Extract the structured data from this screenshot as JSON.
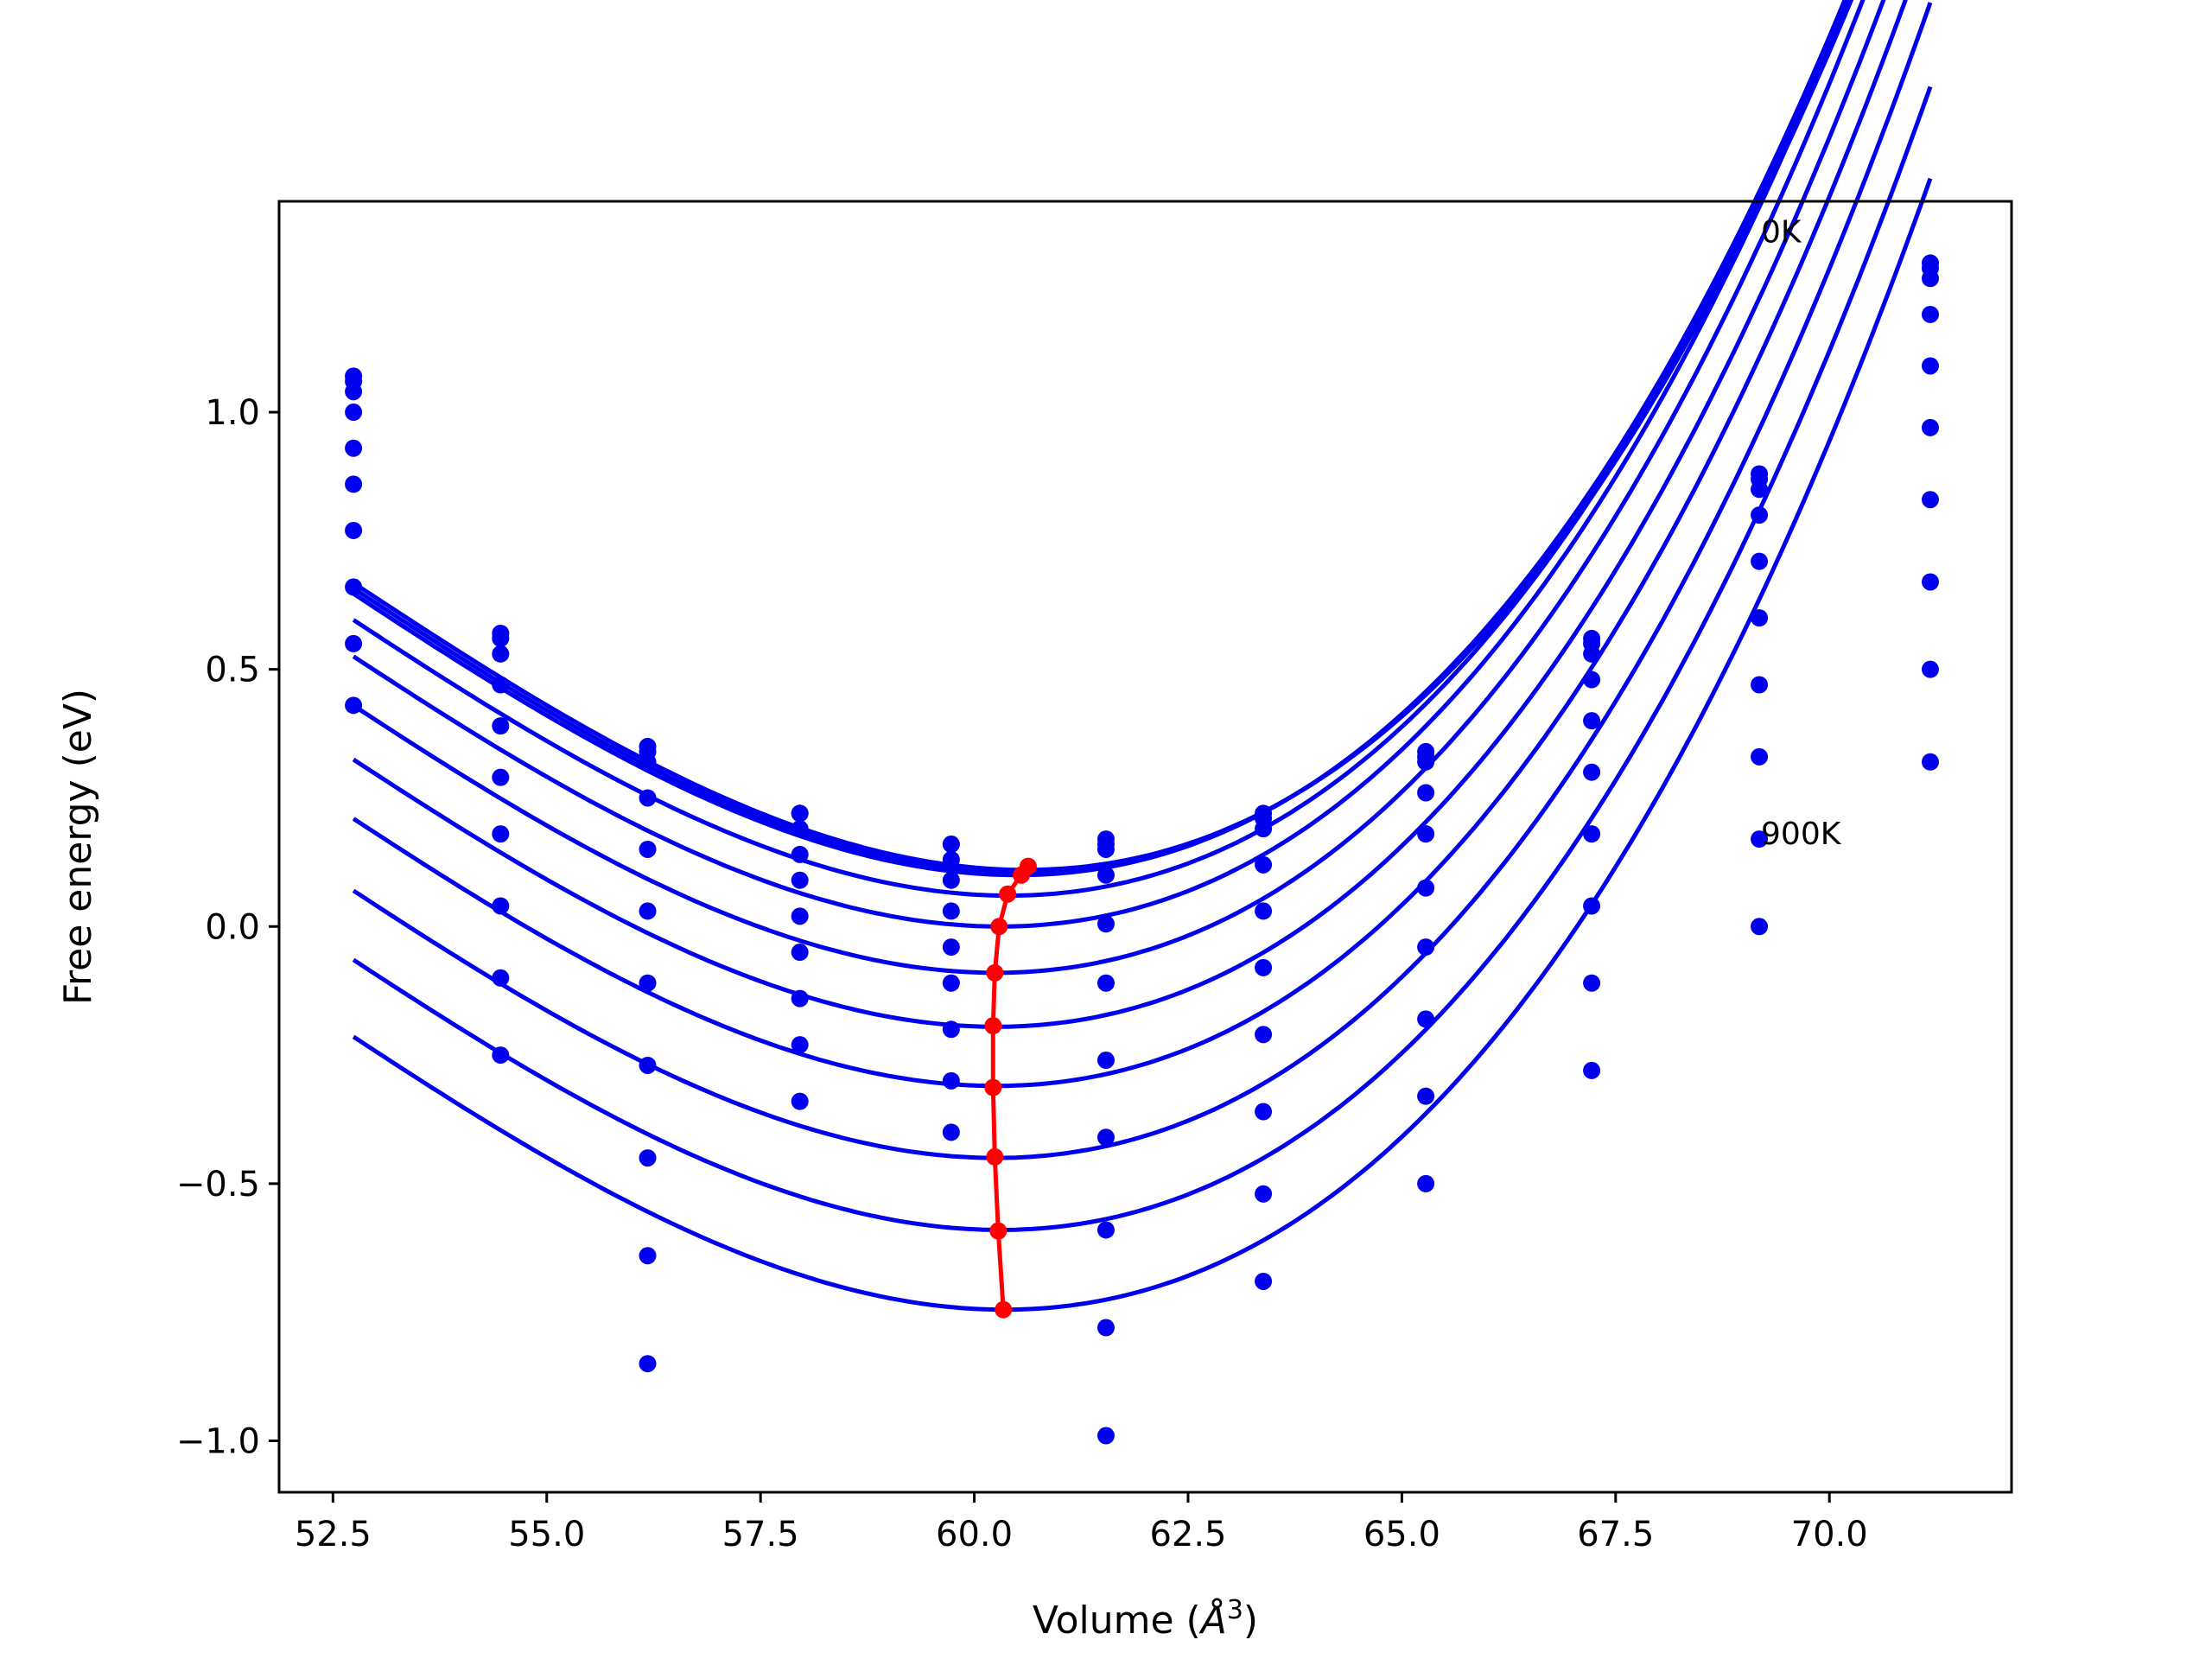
{
  "chart_data": {
    "type": "line",
    "title": "",
    "xlabel": "Volume (",
    "xlabel_symbol": "Å",
    "xlabel_exp": "3",
    "xlabel_close": ")",
    "ylabel": "Free energy (eV)",
    "xlim": [
      51.87,
      72.13
    ],
    "ylim": [
      -1.1,
      1.41
    ],
    "xticks": [
      52.5,
      55.0,
      57.5,
      60.0,
      62.5,
      65.0,
      67.5,
      70.0
    ],
    "xtick_labels": [
      "52.5",
      "55.0",
      "57.5",
      "60.0",
      "62.5",
      "65.0",
      "67.5",
      "70.0"
    ],
    "yticks": [
      -1.0,
      -0.5,
      0.0,
      0.5,
      1.0
    ],
    "ytick_labels": [
      "−1.0",
      "−0.5",
      "0.0",
      "0.5",
      "1.0"
    ],
    "grid": false,
    "colors": {
      "fit": "#0000ee",
      "points": "#0000ee",
      "minima": "#ff0000"
    },
    "annotations": [
      {
        "text": "0K",
        "x": 69.2,
        "y": 1.33
      },
      {
        "text": "900K",
        "x": 69.2,
        "y": 0.16
      }
    ],
    "volumes": [
      52.74,
      54.46,
      56.18,
      57.96,
      59.73,
      61.54,
      63.38,
      65.28,
      67.22,
      69.18,
      71.18
    ],
    "fit_range": [
      52.74,
      71.18
    ],
    "series": [
      {
        "points": [
          1.07,
          0.57,
          0.35,
          0.22,
          0.16,
          0.17,
          0.22,
          0.34,
          0.56,
          0.88,
          1.29
        ],
        "fit": {
          "v0": 60.6,
          "e0": 0.11,
          "a": 0.01312,
          "b": 0.00052
        }
      },
      {
        "points": [
          1.06,
          0.56,
          0.34,
          0.22,
          0.16,
          0.16,
          0.21,
          0.33,
          0.55,
          0.87,
          1.28
        ],
        "fit": {
          "v0": 60.55,
          "e0": 0.105,
          "a": 0.01312,
          "b": 0.00052
        }
      },
      {
        "points": [
          1.04,
          0.53,
          0.32,
          0.19,
          0.13,
          0.15,
          0.19,
          0.32,
          0.53,
          0.85,
          1.26
        ],
        "fit": {
          "v0": 60.5,
          "e0": 0.1,
          "a": 0.01312,
          "b": 0.00052
        }
      },
      {
        "points": [
          1.0,
          0.47,
          0.25,
          0.14,
          0.09,
          0.1,
          0.12,
          0.26,
          0.48,
          0.8,
          1.19
        ],
        "fit": {
          "v0": 60.4,
          "e0": 0.06,
          "a": 0.01312,
          "b": 0.00052
        }
      },
      {
        "points": [
          0.93,
          0.39,
          0.15,
          0.09,
          0.03,
          0.005,
          0.03,
          0.18,
          0.4,
          0.71,
          1.09
        ],
        "fit": {
          "v0": 60.3,
          "e0": 0.0,
          "a": 0.01312,
          "b": 0.00052
        }
      },
      {
        "points": [
          0.86,
          0.29,
          0.03,
          0.02,
          -0.04,
          -0.11,
          -0.08,
          0.075,
          0.3,
          0.6,
          0.97
        ],
        "fit": {
          "v0": 60.25,
          "e0": -0.09,
          "a": 0.01312,
          "b": 0.00052
        }
      },
      {
        "points": [
          0.77,
          0.18,
          -0.11,
          -0.05,
          -0.11,
          -0.26,
          -0.21,
          -0.04,
          0.18,
          0.47,
          0.83
        ],
        "fit": {
          "v0": 60.25,
          "e0": -0.195,
          "a": 0.01312,
          "b": 0.00052
        }
      },
      {
        "points": [
          0.66,
          0.04,
          -0.27,
          -0.14,
          -0.2,
          -0.41,
          -0.36,
          -0.18,
          0.04,
          0.33,
          0.67
        ],
        "fit": {
          "v0": 60.25,
          "e0": -0.31,
          "a": 0.01312,
          "b": 0.00052
        }
      },
      {
        "points": [
          0.55,
          -0.1,
          -0.45,
          -0.23,
          -0.3,
          -0.59,
          -0.52,
          -0.33,
          -0.11,
          0.17,
          0.5
        ],
        "fit": {
          "v0": 60.25,
          "e0": -0.45,
          "a": 0.01312,
          "b": 0.00052
        }
      },
      {
        "points": [
          0.43,
          -0.25,
          -0.64,
          -0.34,
          -0.4,
          -0.78,
          -0.69,
          -0.5,
          -0.28,
          0.0,
          0.32
        ],
        "fit": {
          "v0": 60.3,
          "e0": -0.59,
          "a": 0.01312,
          "b": 0.00052
        }
      },
      {
        "points": [
          null,
          null,
          -0.85,
          null,
          null,
          -0.99,
          null,
          null,
          null,
          null,
          null
        ],
        "fit": {
          "v0": 60.35,
          "e0": -0.745,
          "a": 0.01312,
          "b": 0.00052
        }
      }
    ],
    "minima_curve": {
      "x": [
        60.63,
        60.55,
        60.39,
        60.29,
        60.24,
        60.22,
        60.22,
        60.24,
        60.28,
        60.34
      ],
      "y": [
        0.117,
        0.1,
        0.063,
        0.0,
        -0.09,
        -0.193,
        -0.313,
        -0.448,
        -0.592,
        -0.745
      ]
    }
  }
}
